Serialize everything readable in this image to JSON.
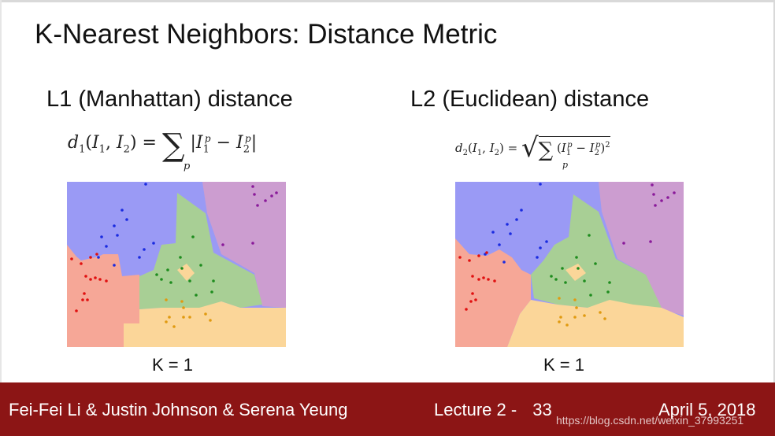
{
  "slide": {
    "title": "K-Nearest Neighbors: Distance Metric",
    "left": {
      "heading": "L1 (Manhattan) distance",
      "formula_lhs": "d",
      "formula_sub": "1",
      "formula_args": "(I",
      "formula_sum_index": "p",
      "k_label": "K = 1"
    },
    "right": {
      "heading": "L2 (Euclidean) distance",
      "formula_sum_index": "p",
      "k_label": "K = 1"
    }
  },
  "footer": {
    "authors": "Fei-Fei Li & Justin Johnson & Serena Yeung",
    "lecture": "Lecture 2 -",
    "page": "33",
    "date": "April 5, 2018",
    "watermark": "https://blog.csdn.net/weixin_37993251"
  },
  "colors": {
    "footer_bg": "#8c1515",
    "region_blue": "#9a9af5",
    "region_purple": "#cc9dd0",
    "region_green": "#a8cf95",
    "region_red": "#f6a797",
    "region_orange": "#fbd699",
    "point_blue": "#1a2be0",
    "point_purple": "#8a1a9a",
    "point_green": "#1e8c1e",
    "point_red": "#e01010",
    "point_orange": "#e09a10"
  }
}
